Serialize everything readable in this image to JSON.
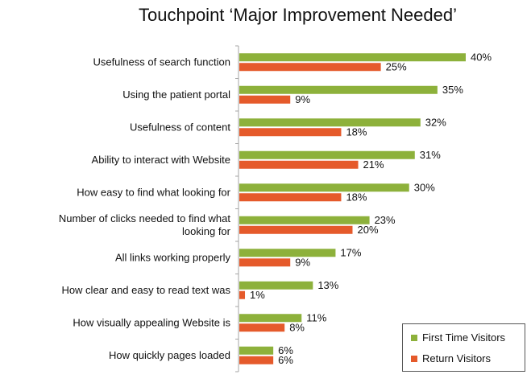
{
  "chart_data": {
    "type": "bar",
    "orientation": "horizontal",
    "title": "Touchpoint ‘Major Improvement Needed’",
    "categories": [
      "Usefulness of search function",
      "Using the patient portal",
      "Usefulness of content",
      "Ability to interact with Website",
      "How easy to find what looking for",
      "Number of clicks needed to find what looking for",
      "All links working properly",
      "How clear and easy to read text was",
      "How visually appealing Website is",
      "How quickly pages loaded"
    ],
    "category_lines": [
      [
        "Usefulness of search function"
      ],
      [
        "Using the patient portal"
      ],
      [
        "Usefulness of content"
      ],
      [
        "Ability to interact with Website"
      ],
      [
        "How easy to find what looking for"
      ],
      [
        "Number of clicks needed to find what",
        "looking for"
      ],
      [
        "All links working properly"
      ],
      [
        "How clear and easy to read text was"
      ],
      [
        "How visually appealing Website is"
      ],
      [
        "How quickly pages loaded"
      ]
    ],
    "series": [
      {
        "name": "First Time Visitors",
        "color": "#8DB13B",
        "values": [
          40,
          35,
          32,
          31,
          30,
          23,
          17,
          13,
          11,
          6
        ]
      },
      {
        "name": "Return Visitors",
        "color": "#E55A2B",
        "values": [
          25,
          9,
          18,
          21,
          18,
          20,
          9,
          1,
          8,
          6
        ]
      }
    ],
    "value_suffix": "%",
    "xlim": [
      0,
      40
    ],
    "legend_position": "bottom-right",
    "axis_color": "#A6A6A6"
  }
}
